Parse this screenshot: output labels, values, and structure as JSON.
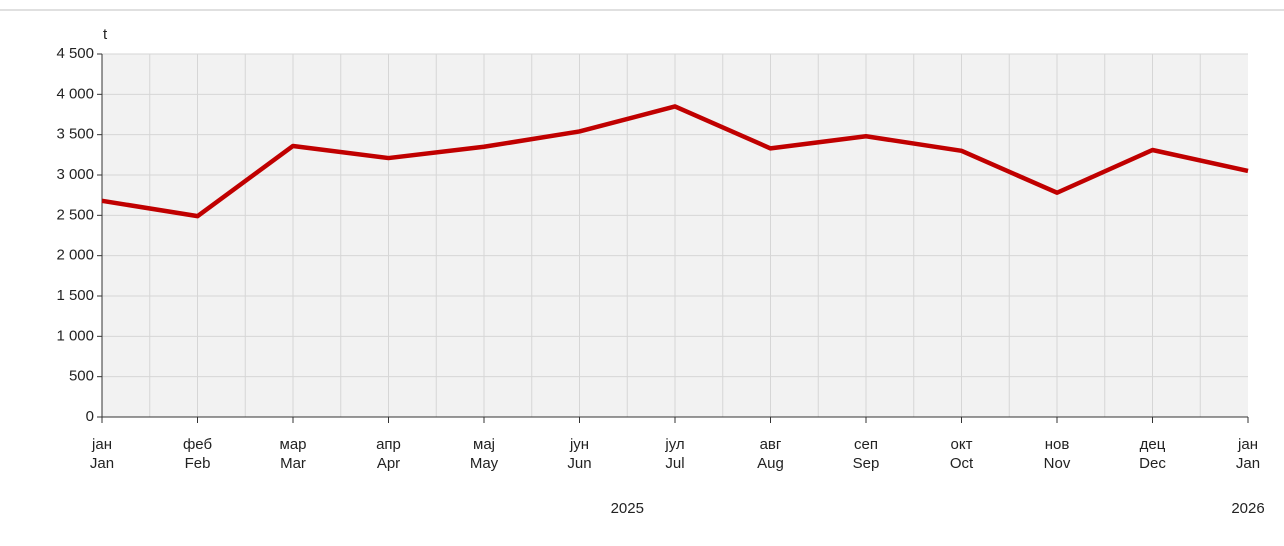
{
  "chart_data": {
    "type": "line",
    "y_unit": "t",
    "categories": [
      "Jan",
      "Feb",
      "Mar",
      "Apr",
      "May",
      "Jun",
      "Jul",
      "Aug",
      "Sep",
      "Oct",
      "Nov",
      "Dec",
      "Jan"
    ],
    "categories_sr": [
      "јан",
      "феб",
      "мар",
      "апр",
      "мај",
      "јун",
      "јул",
      "авг",
      "сеп",
      "окт",
      "нов",
      "дец",
      "јан"
    ],
    "years": [
      "2025",
      "2026"
    ],
    "series": [
      {
        "color": "#c00000",
        "values": [
          2680,
          2490,
          3360,
          3210,
          3350,
          3540,
          3850,
          3330,
          3480,
          3300,
          2780,
          3310,
          3050
        ]
      }
    ],
    "ylim": [
      0,
      4500
    ],
    "yticks": [
      0,
      500,
      {
        "value": 1000,
        "label": "1 000"
      },
      {
        "value": 1500,
        "label": "1 500"
      },
      {
        "value": 2000,
        "label": "2 000"
      },
      {
        "value": 2500,
        "label": "2 500"
      },
      {
        "value": 3000,
        "label": "3 000"
      },
      {
        "value": 3500,
        "label": "3 500"
      },
      {
        "value": 4000,
        "label": "4 000"
      },
      {
        "value": 4500,
        "label": "4 500"
      }
    ],
    "grid": true
  }
}
